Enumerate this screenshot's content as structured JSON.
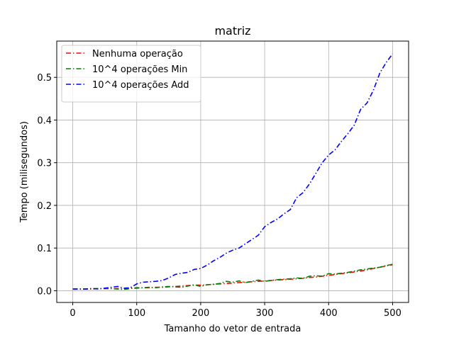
{
  "chart_data": {
    "type": "line",
    "title": "matriz",
    "xlabel": "Tamanho do vetor de entrada",
    "ylabel": "Tempo (milisegundos)",
    "xlim": [
      -25,
      525
    ],
    "ylim": [
      -0.0275,
      0.585
    ],
    "xticks": [
      0,
      100,
      200,
      300,
      400,
      500
    ],
    "xtick_labels": [
      "0",
      "100",
      "200",
      "300",
      "400",
      "500"
    ],
    "yticks": [
      0.0,
      0.1,
      0.2,
      0.3,
      0.4,
      0.5
    ],
    "ytick_labels": [
      "0.0",
      "0.1",
      "0.2",
      "0.3",
      "0.4",
      "0.5"
    ],
    "grid": true,
    "legend_position": "top-left",
    "x": [
      0,
      10,
      20,
      30,
      40,
      50,
      60,
      70,
      80,
      90,
      100,
      110,
      120,
      130,
      140,
      150,
      160,
      170,
      180,
      190,
      200,
      210,
      220,
      230,
      240,
      250,
      260,
      270,
      280,
      290,
      300,
      310,
      320,
      330,
      340,
      350,
      360,
      370,
      380,
      390,
      400,
      410,
      420,
      430,
      440,
      450,
      460,
      470,
      480,
      490,
      500
    ],
    "series": [
      {
        "name": "Nenhuma operação",
        "color": "#ff0000",
        "values": [
          0.004,
          0.004,
          0.004,
          0.004,
          0.005,
          0.005,
          0.005,
          0.005,
          0.004,
          0.006,
          0.007,
          0.007,
          0.007,
          0.008,
          0.008,
          0.009,
          0.01,
          0.011,
          0.012,
          0.013,
          0.013,
          0.014,
          0.015,
          0.016,
          0.017,
          0.018,
          0.019,
          0.02,
          0.021,
          0.022,
          0.023,
          0.024,
          0.025,
          0.026,
          0.027,
          0.028,
          0.029,
          0.031,
          0.032,
          0.034,
          0.036,
          0.038,
          0.04,
          0.042,
          0.044,
          0.046,
          0.049,
          0.052,
          0.055,
          0.058,
          0.061
        ]
      },
      {
        "name": "10^4 operações Min",
        "color": "#008000",
        "values": [
          0.004,
          0.004,
          0.004,
          0.005,
          0.005,
          0.005,
          0.005,
          0.004,
          0.003,
          0.005,
          0.006,
          0.007,
          0.008,
          0.007,
          0.009,
          0.01,
          0.009,
          0.008,
          0.011,
          0.014,
          0.01,
          0.014,
          0.015,
          0.017,
          0.022,
          0.02,
          0.023,
          0.019,
          0.022,
          0.025,
          0.022,
          0.024,
          0.026,
          0.027,
          0.028,
          0.03,
          0.029,
          0.034,
          0.035,
          0.034,
          0.04,
          0.039,
          0.041,
          0.043,
          0.046,
          0.049,
          0.051,
          0.053,
          0.055,
          0.059,
          0.062
        ]
      },
      {
        "name": "10^4 operações Add",
        "color": "#0000ff",
        "values": [
          0.004,
          0.004,
          0.004,
          0.005,
          0.004,
          0.006,
          0.008,
          0.01,
          0.006,
          0.007,
          0.016,
          0.02,
          0.021,
          0.022,
          0.024,
          0.03,
          0.038,
          0.041,
          0.043,
          0.05,
          0.052,
          0.06,
          0.07,
          0.078,
          0.088,
          0.095,
          0.1,
          0.11,
          0.12,
          0.13,
          0.15,
          0.16,
          0.168,
          0.18,
          0.19,
          0.218,
          0.23,
          0.25,
          0.275,
          0.3,
          0.318,
          0.33,
          0.35,
          0.368,
          0.388,
          0.425,
          0.44,
          0.47,
          0.51,
          0.535,
          0.555
        ]
      }
    ]
  }
}
